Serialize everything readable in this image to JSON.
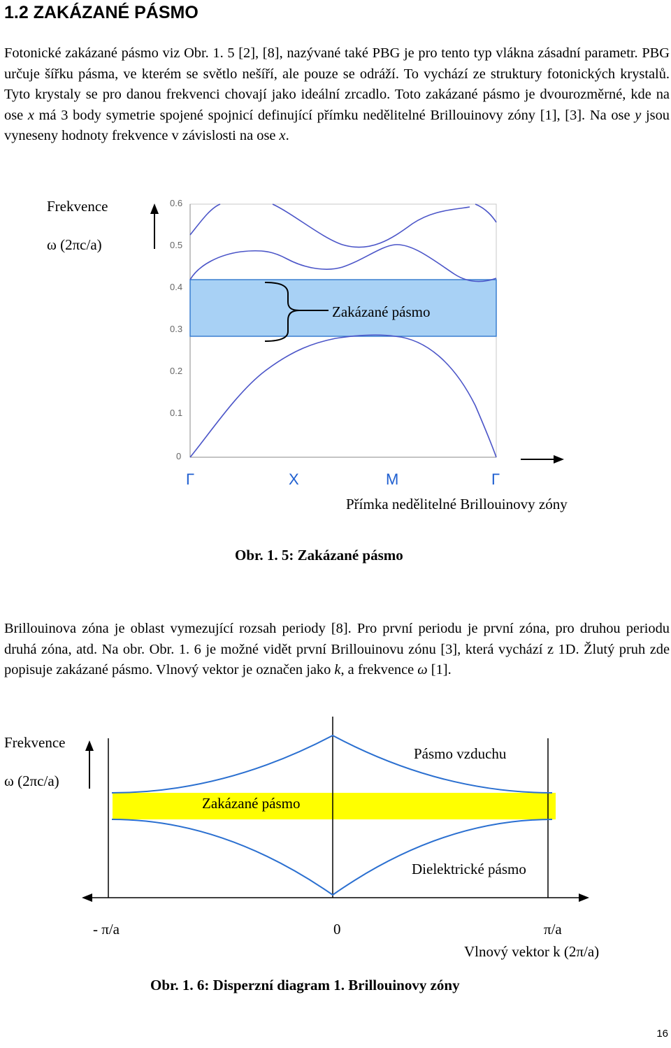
{
  "heading": "1.2  ZAKÁZANÉ PÁSMO",
  "para1": {
    "part1": "Fotonické zakázané pásmo viz Obr. 1. 5 [2], [8], nazývané také PBG je pro tento typ vlákna zásadní parametr. PBG určuje šířku pásma, ve kterém se světlo nešíří, ale pouze se odráží. To vychází ze struktury fotonických krystalů. Tyto krystaly se pro danou frekvenci chovají jako ideální zrcadlo. Toto zakázané pásmo je dvourozměrné, kde na ose ",
    "x1": "x",
    "part2": " má 3 body symetrie spojené spojnicí definující přímku nedělitelné Brillouinovy zóny [1], [3]. Na ose ",
    "y": "y",
    "part3": " jsou vyneseny hodnoty frekvence v závislosti na ose ",
    "x2": "x",
    "part4": "."
  },
  "fig1": {
    "ylabel_line1": "Frekvence",
    "ylabel_line2": "ω (2πc/a)",
    "yticks": [
      "0.6",
      "0.5",
      "0.4",
      "0.3",
      "0.2",
      "0.1",
      "0"
    ],
    "xticks": [
      "Γ",
      "X",
      "M",
      "Γ"
    ],
    "band_label": "Zakázané pásmo",
    "xlabel": "Přímka nedělitelné Brillouinovy zóny",
    "caption": "Obr. 1. 5: Zakázané pásmo",
    "colors": {
      "band_fill": "#a8d1f5",
      "curve": "#4b55c8",
      "band_border": "#3a7fd0"
    }
  },
  "para2": {
    "part1": "Brillouinova zóna je oblast vymezující rozsah periody [8]. Pro první periodu je první zóna, pro druhou periodu druhá zóna, atd. Na obr. Obr. 1. 6 je možné vidět první Brillouinovu zónu [3], která vychází z 1D. Žlutý pruh zde popisuje zakázané pásmo. Vlnový vektor je označen jako ",
    "k": "k",
    "part2": ", a frekvence ",
    "omega": "ω",
    "part3": " [1]."
  },
  "fig2": {
    "ylabel_line1": "Frekvence",
    "ylabel_line2": "ω (2πc/a)",
    "air_band": "Pásmo vzduchu",
    "gap_label": "Zakázané pásmo",
    "dielectric_band": "Dielektrické pásmo",
    "xtick_left": "- π/a",
    "xtick_center": "0",
    "xtick_right": "π/a",
    "xlabel": "Vlnový vektor  k (2π/a)",
    "caption": "Obr. 1. 6: Disperzní diagram 1. Brillouinovy zóny",
    "colors": {
      "gap_fill": "#ffff00",
      "curve": "#2a6fd0"
    }
  },
  "page_number": "16"
}
